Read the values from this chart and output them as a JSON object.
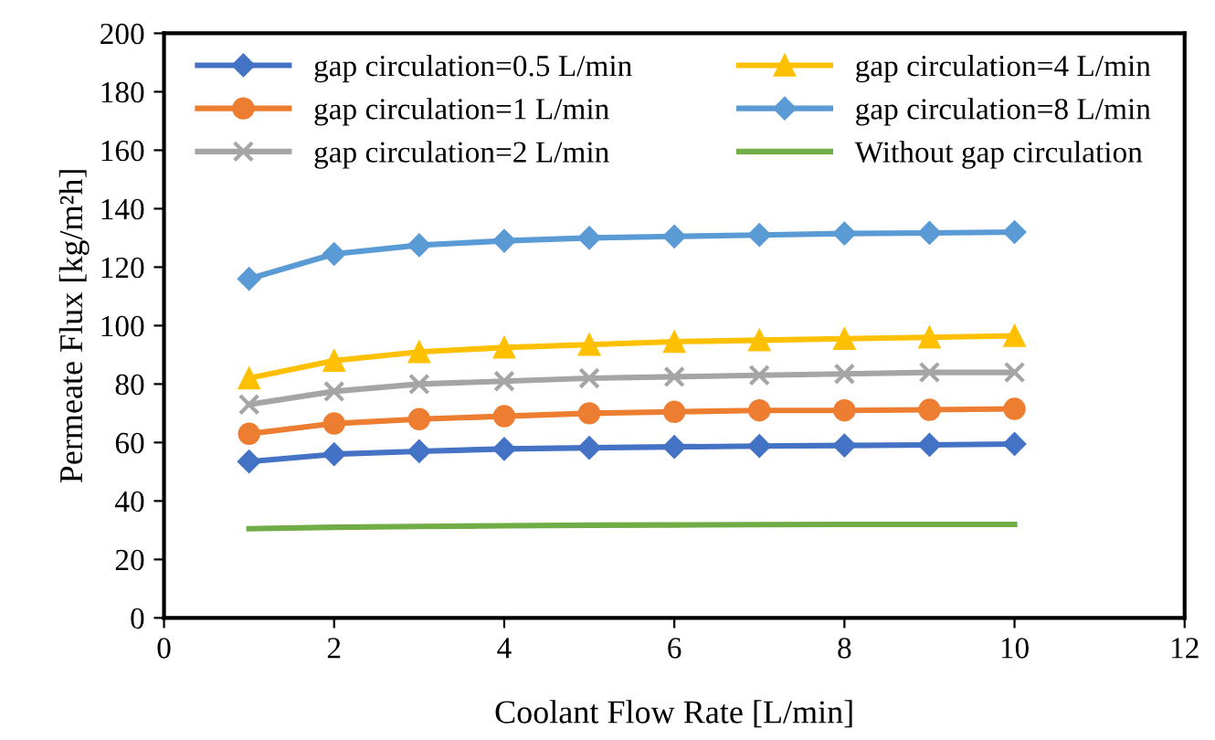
{
  "chart_data": {
    "type": "line",
    "xlabel": "Coolant Flow Rate [L/min]",
    "ylabel": "Permeate Flux [kg/m²h]",
    "x": [
      1,
      2,
      3,
      4,
      5,
      6,
      7,
      8,
      9,
      10
    ],
    "xlim": [
      0,
      12
    ],
    "xticks": [
      0,
      2,
      4,
      6,
      8,
      10,
      12
    ],
    "ylim": [
      0,
      200
    ],
    "yticks": [
      0,
      20,
      40,
      60,
      80,
      100,
      120,
      140,
      160,
      180,
      200
    ],
    "grid": false,
    "legend": "top",
    "line_style": "solid",
    "series": [
      {
        "name": "gap circulation=0.5 L/min",
        "color": "#4472c4",
        "marker": "diamond",
        "values": [
          53.5,
          56,
          57,
          57.8,
          58.2,
          58.5,
          58.8,
          59,
          59.2,
          59.5
        ]
      },
      {
        "name": "gap circulation=1 L/min",
        "color": "#ed7d31",
        "marker": "circle",
        "values": [
          63,
          66.5,
          68,
          69,
          70,
          70.5,
          71,
          71,
          71.2,
          71.5
        ]
      },
      {
        "name": "gap circulation=2 L/min",
        "color": "#a5a5a5",
        "marker": "cross",
        "values": [
          73,
          77.5,
          80,
          81,
          82,
          82.5,
          83,
          83.5,
          84,
          84
        ]
      },
      {
        "name": "gap circulation=4 L/min",
        "color": "#ffc000",
        "marker": "triangle",
        "values": [
          82,
          88,
          91,
          92.5,
          93.5,
          94.5,
          95,
          95.5,
          96,
          96.5
        ]
      },
      {
        "name": "gap circulation=8 L/min",
        "color": "#5b9bd5",
        "marker": "diamond",
        "values": [
          116,
          124.5,
          127.5,
          129,
          130,
          130.5,
          131,
          131.5,
          131.7,
          132
        ]
      },
      {
        "name": "Without gap circulation",
        "color": "#70ad47",
        "marker": "none",
        "values": [
          30.5,
          31,
          31.3,
          31.5,
          31.7,
          31.8,
          31.9,
          32,
          32,
          32
        ]
      }
    ]
  }
}
